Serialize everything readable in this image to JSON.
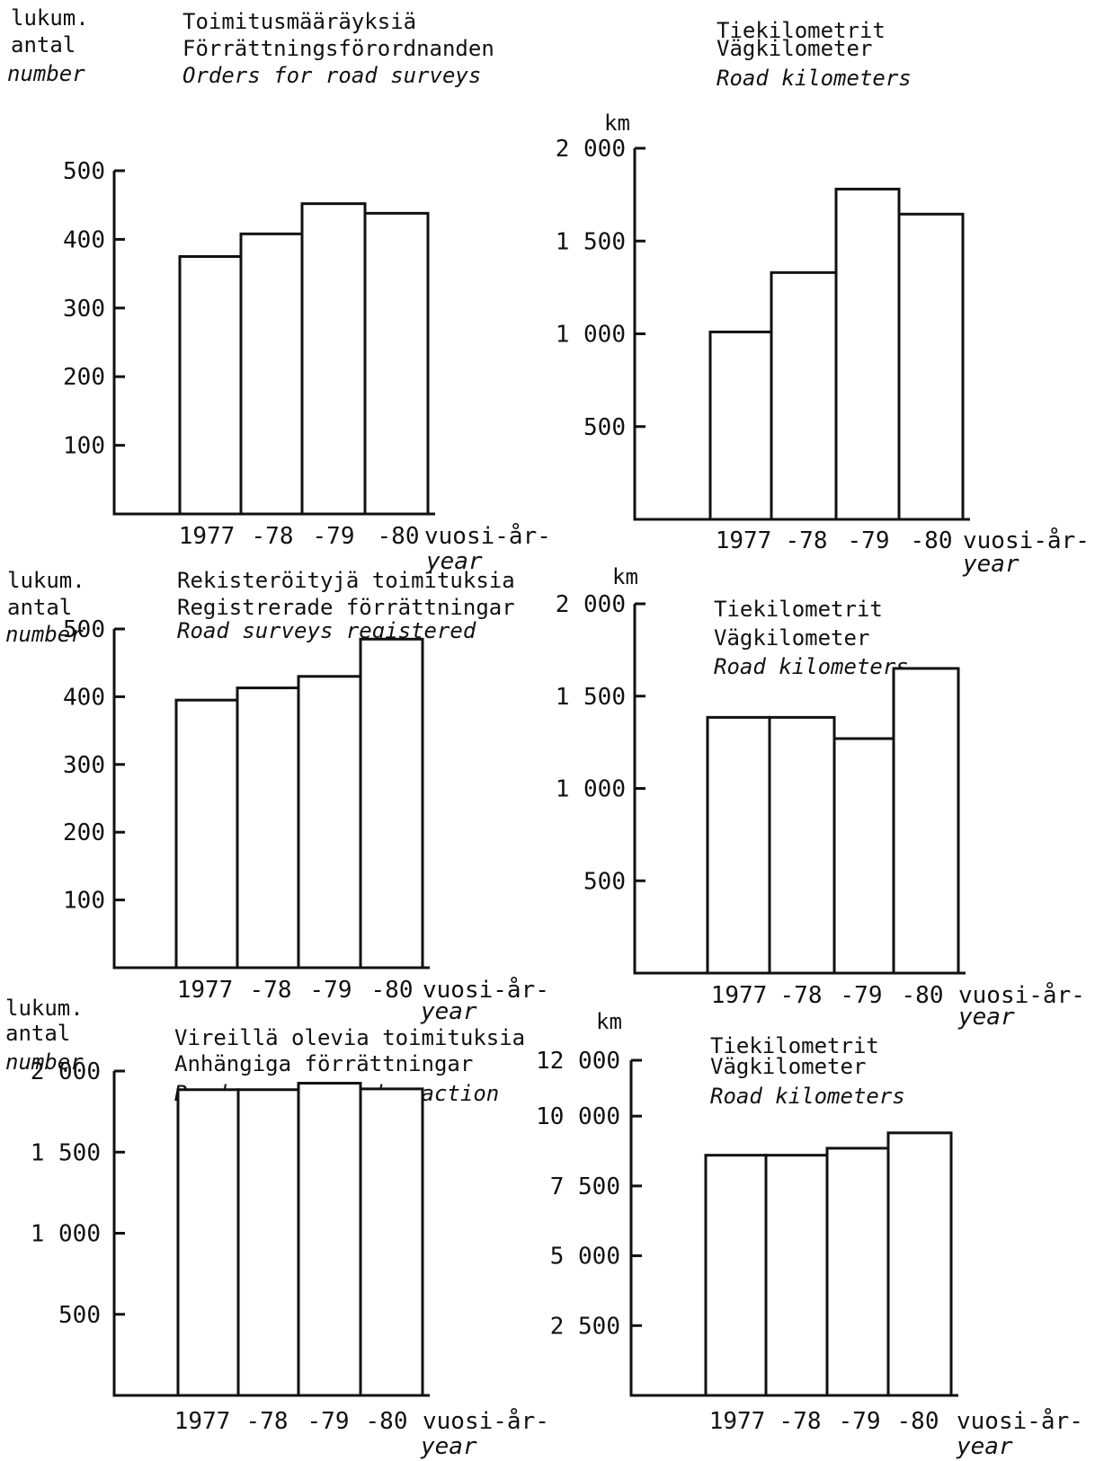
{
  "chart_data": [
    {
      "type": "bar",
      "title": [
        "Toimitusmääräyksiä",
        "Förrättningsförordnanden",
        "Orders for road surveys"
      ],
      "ylabel": [
        "lukum.",
        "antal",
        "number"
      ],
      "xlabel": [
        "vuosi-år-",
        "year"
      ],
      "categories": [
        "1977",
        "-78",
        "-79",
        "-80"
      ],
      "values": [
        375,
        408,
        452,
        438
      ],
      "yticks": [
        "100",
        "200",
        "300",
        "400",
        "500"
      ],
      "ylim": [
        0,
        500
      ]
    },
    {
      "type": "bar",
      "title": [
        "Tiekilometrit",
        "Vägkilometer",
        "Road kilometers"
      ],
      "ylabel": [
        "km"
      ],
      "xlabel": [
        "vuosi-år-",
        "year"
      ],
      "categories": [
        "1977",
        "-78",
        "-79",
        "-80"
      ],
      "values": [
        1010,
        1330,
        1780,
        1645
      ],
      "yticks": [
        "500",
        "1 000",
        "1 500",
        "2 000"
      ],
      "ylim": [
        0,
        2000
      ]
    },
    {
      "type": "bar",
      "title": [
        "Rekisteröityjä toimituksia",
        "Registrerade förrättningar",
        "Road surveys registered"
      ],
      "ylabel": [
        "lukum.",
        "antal",
        "number"
      ],
      "xlabel": [
        "vuosi-år-",
        "year"
      ],
      "categories": [
        "1977",
        "-78",
        "-79",
        "-80"
      ],
      "values": [
        395,
        413,
        430,
        485
      ],
      "yticks": [
        "100",
        "200",
        "300",
        "400",
        "500"
      ],
      "ylim": [
        0,
        500
      ]
    },
    {
      "type": "bar",
      "title": [
        "Tiekilometrit",
        "Vägkilometer",
        "Road kilometers"
      ],
      "ylabel": [
        "km"
      ],
      "xlabel": [
        "vuosi-år-",
        "year"
      ],
      "categories": [
        "1977",
        "-78",
        "-79",
        "-80"
      ],
      "values": [
        1385,
        1385,
        1270,
        1650
      ],
      "yticks": [
        "500",
        "1 000",
        "1 500",
        "2 000"
      ],
      "ylim": [
        0,
        2000
      ]
    },
    {
      "type": "bar",
      "title": [
        "Vireillä olevia toimituksia",
        "Anhängiga förrättningar",
        "Road surveys under action"
      ],
      "ylabel": [
        "lukum.",
        "antal",
        "number"
      ],
      "xlabel": [
        "vuosi-år-",
        "year"
      ],
      "categories": [
        "1977",
        "-78",
        "-79",
        "-80"
      ],
      "values": [
        1885,
        1885,
        1925,
        1890
      ],
      "yticks": [
        "500",
        "1 000",
        "1 500",
        "2 000"
      ],
      "ylim": [
        0,
        2000
      ]
    },
    {
      "type": "bar",
      "title": [
        "Tiekilometrit",
        "Vägkilometer",
        "Road kilometers"
      ],
      "ylabel": [
        "km"
      ],
      "xlabel": [
        "vuosi-år-",
        "year"
      ],
      "categories": [
        "1977",
        "-78",
        "-79",
        "-80"
      ],
      "values": [
        8600,
        8600,
        8850,
        9400
      ],
      "yticks": [
        "2 500",
        "5 000",
        "7 500",
        "10 000",
        "12 000"
      ],
      "ylim": [
        0,
        12000
      ]
    }
  ]
}
